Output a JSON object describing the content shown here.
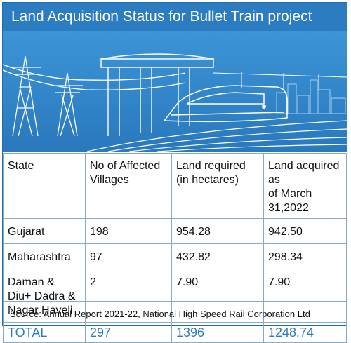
{
  "title": "Land Acquisition Status for Bullet Train project",
  "chart_data": {
    "type": "table",
    "columns": [
      "State",
      "No of Affected Villages",
      "Land required (in hectares)",
      "Land acquired as of March 31,2022"
    ],
    "column_lines": [
      [
        "State"
      ],
      [
        "No of Affected",
        "Villages"
      ],
      [
        "Land required",
        "(in hectares)"
      ],
      [
        "Land acquired as",
        "of March 31,2022"
      ]
    ],
    "rows": [
      {
        "state_lines": [
          "Gujarat"
        ],
        "villages": "198",
        "required": "954.28",
        "acquired": "942.50"
      },
      {
        "state_lines": [
          "Maharashtra"
        ],
        "villages": "97",
        "required": "432.82",
        "acquired": "298.34"
      },
      {
        "state_lines": [
          "Daman &",
          "Diu+ Dadra &",
          "Nagar Haveli"
        ],
        "villages": "2",
        "required": "7.90",
        "acquired": "7.90"
      }
    ],
    "total": {
      "label": "TOTAL",
      "villages": "297",
      "required": "1396",
      "acquired": "1248.74"
    }
  },
  "source": "Source: Annual Report 2021-22, National High Speed Rail Corporation Ltd",
  "colors": {
    "accent": "#2b7cc0",
    "illustration_bg": "#2f86c8",
    "line_art": "#ffffff"
  }
}
